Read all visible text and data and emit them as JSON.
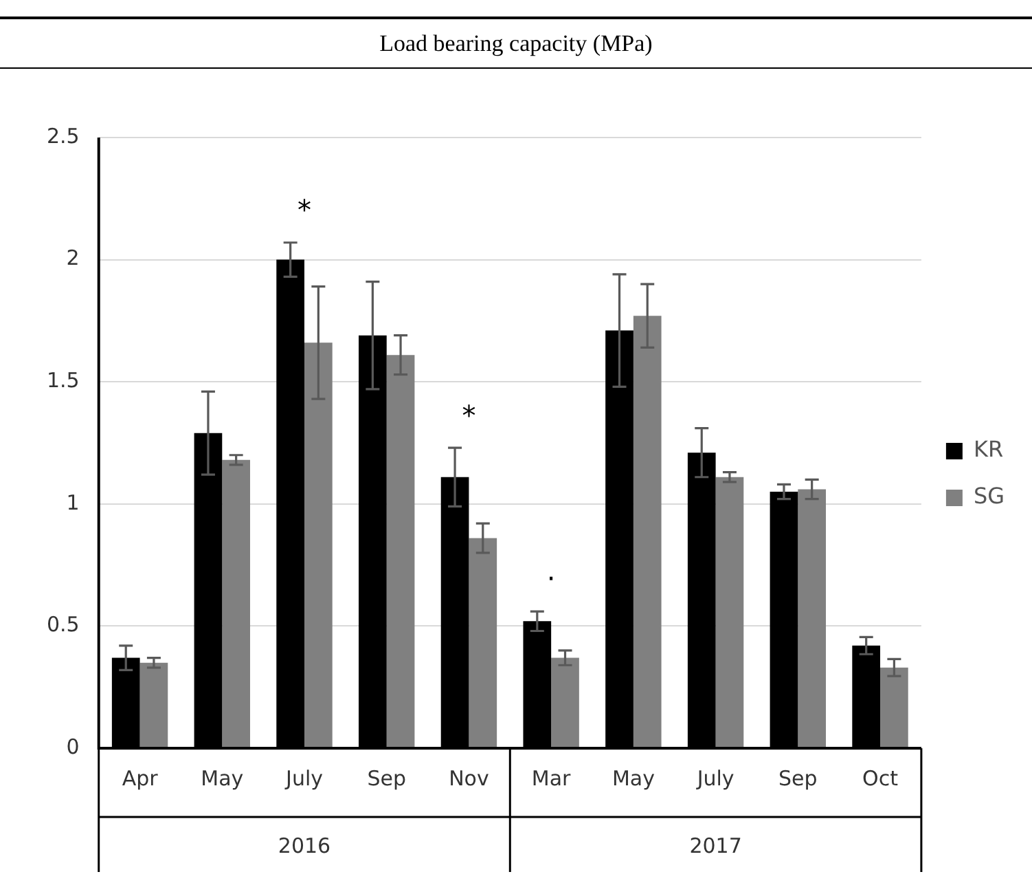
{
  "chart_data": {
    "type": "bar",
    "title": "Load bearing capacity (MPa)",
    "categories": [
      "Apr",
      "May",
      "July",
      "Sep",
      "Nov",
      "Mar",
      "May",
      "July",
      "Sep",
      "Oct"
    ],
    "series": [
      {
        "name": "KR",
        "color": "#000000",
        "values": [
          0.37,
          1.29,
          2.0,
          1.69,
          1.11,
          0.52,
          1.71,
          1.21,
          1.05,
          0.42
        ],
        "errors": [
          0.05,
          0.17,
          0.07,
          0.22,
          0.12,
          0.04,
          0.23,
          0.1,
          0.03,
          0.035
        ]
      },
      {
        "name": "SG",
        "color": "#808080",
        "values": [
          0.35,
          1.18,
          1.66,
          1.61,
          0.86,
          0.37,
          1.77,
          1.11,
          1.06,
          0.33
        ],
        "errors": [
          0.02,
          0.02,
          0.23,
          0.08,
          0.06,
          0.03,
          0.13,
          0.02,
          0.04,
          0.035
        ]
      }
    ],
    "ylim": [
      0,
      2.5
    ],
    "yticks": [
      0,
      0.5,
      1,
      1.5,
      2,
      2.5
    ],
    "grid": "y",
    "legend": "right",
    "annotations": [
      "2016",
      "2017",
      {
        "text": "*",
        "x": "July",
        "y": 2.0
      },
      {
        "text": "*",
        "x": "Nov",
        "y": 1.11
      },
      {
        "text": "·",
        "x": "Mar",
        "y": 0.52
      }
    ]
  }
}
